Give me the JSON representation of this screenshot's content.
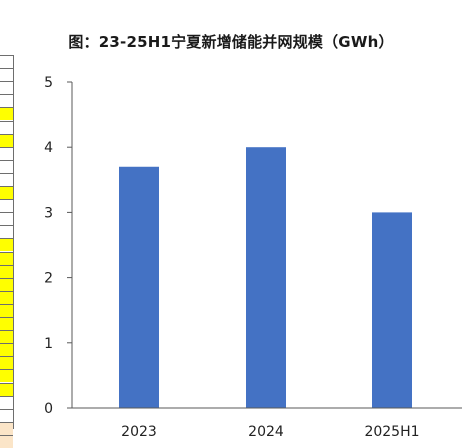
{
  "chart_data": {
    "type": "bar",
    "title": "图：23-25H1宁夏新增储能并网规模（GWh）",
    "xlabel": "",
    "ylabel": "",
    "categories": [
      "2023",
      "2024",
      "2025H1"
    ],
    "values": [
      3.7,
      4.0,
      3.0
    ],
    "ylim": [
      0,
      5
    ],
    "yticks": [
      "0",
      "1",
      "2",
      "3",
      "4",
      "5"
    ],
    "grid": false,
    "legend": "none",
    "bar_color": "#4472C4",
    "axis_color": "#595959"
  },
  "side_strip": {
    "cells": [
      "white",
      "white",
      "white",
      "white",
      "yellow",
      "white",
      "yellow",
      "white",
      "white",
      "white",
      "yellow",
      "white",
      "white",
      "white",
      "yellow",
      "yellow",
      "yellow",
      "yellow",
      "yellow",
      "yellow",
      "yellow",
      "yellow",
      "yellow",
      "yellow",
      "yellow",
      "yellow",
      "white",
      "white",
      "peach",
      "peach"
    ],
    "colors": {
      "white": "#ffffff",
      "yellow": "#ffff00",
      "peach": "#fbe5c8"
    }
  }
}
